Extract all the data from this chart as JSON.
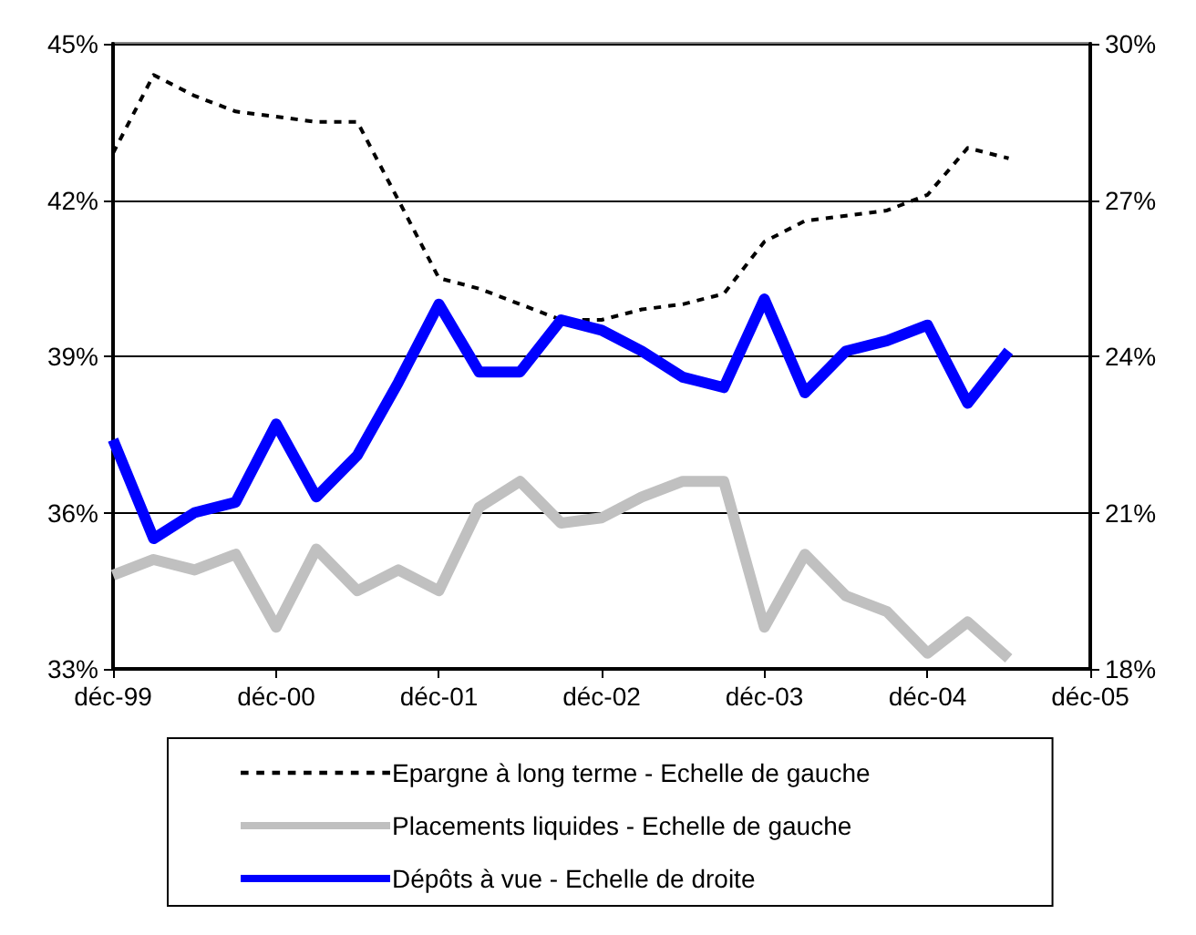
{
  "chart_data": {
    "type": "line",
    "x": [
      "1999-12",
      "2000-03",
      "2000-06",
      "2000-09",
      "2000-12",
      "2001-03",
      "2001-06",
      "2001-09",
      "2001-12",
      "2002-03",
      "2002-06",
      "2002-09",
      "2002-12",
      "2003-03",
      "2003-06",
      "2003-09",
      "2003-12",
      "2004-03",
      "2004-06",
      "2004-09",
      "2004-12",
      "2005-03",
      "2005-06"
    ],
    "series": [
      {
        "name": "Epargne à long terme - Echelle de gauche",
        "color": "#000000",
        "line_style": "dashed",
        "values": [
          42.9,
          44.4,
          44.0,
          43.7,
          43.6,
          43.5,
          43.5,
          42.0,
          40.5,
          40.3,
          40.0,
          39.7,
          39.7,
          39.9,
          40.0,
          40.2,
          41.2,
          41.6,
          41.7,
          41.8,
          42.1,
          43.0,
          42.8
        ]
      },
      {
        "name": "Placements liquides - Echelle de gauche",
        "color": "#c0c0c0",
        "line_style": "solid",
        "values": [
          34.8,
          35.1,
          34.9,
          35.2,
          33.8,
          35.3,
          34.5,
          34.9,
          34.5,
          36.1,
          36.6,
          35.8,
          35.9,
          36.3,
          36.6,
          36.6,
          33.8,
          35.2,
          34.4,
          34.1,
          33.3,
          33.9,
          33.2
        ]
      },
      {
        "name": "Dépôts à vue - Echelle de droite",
        "color": "#0000ff",
        "line_style": "solid",
        "axis": "y2",
        "values": [
          22.4,
          20.5,
          21.0,
          21.2,
          22.7,
          21.3,
          22.1,
          23.5,
          25.0,
          23.7,
          23.7,
          24.7,
          24.5,
          24.1,
          23.6,
          23.4,
          25.1,
          23.3,
          24.1,
          24.3,
          24.6,
          23.1,
          24.1
        ]
      }
    ],
    "xlim": [
      "1999-12",
      "2005-12"
    ],
    "xticks": [
      {
        "value": "1999-12",
        "label": "déc-99"
      },
      {
        "value": "2000-12",
        "label": "déc-00"
      },
      {
        "value": "2001-12",
        "label": "déc-01"
      },
      {
        "value": "2002-12",
        "label": "déc-02"
      },
      {
        "value": "2003-12",
        "label": "déc-03"
      },
      {
        "value": "2004-12",
        "label": "déc-04"
      },
      {
        "value": "2005-12",
        "label": "déc-05"
      }
    ],
    "ylim": [
      33,
      45
    ],
    "yticks": [
      {
        "value": 33,
        "label": "33%"
      },
      {
        "value": 36,
        "label": "36%"
      },
      {
        "value": 39,
        "label": "39%"
      },
      {
        "value": 42,
        "label": "42%"
      },
      {
        "value": 45,
        "label": "45%"
      }
    ],
    "y2lim": [
      18,
      30
    ],
    "y2ticks": [
      {
        "value": 18,
        "label": "18%"
      },
      {
        "value": 21,
        "label": "21%"
      },
      {
        "value": 24,
        "label": "24%"
      },
      {
        "value": 27,
        "label": "27%"
      },
      {
        "value": 30,
        "label": "30%"
      }
    ],
    "grid": "y",
    "legend": "bottom",
    "marker": "none"
  }
}
